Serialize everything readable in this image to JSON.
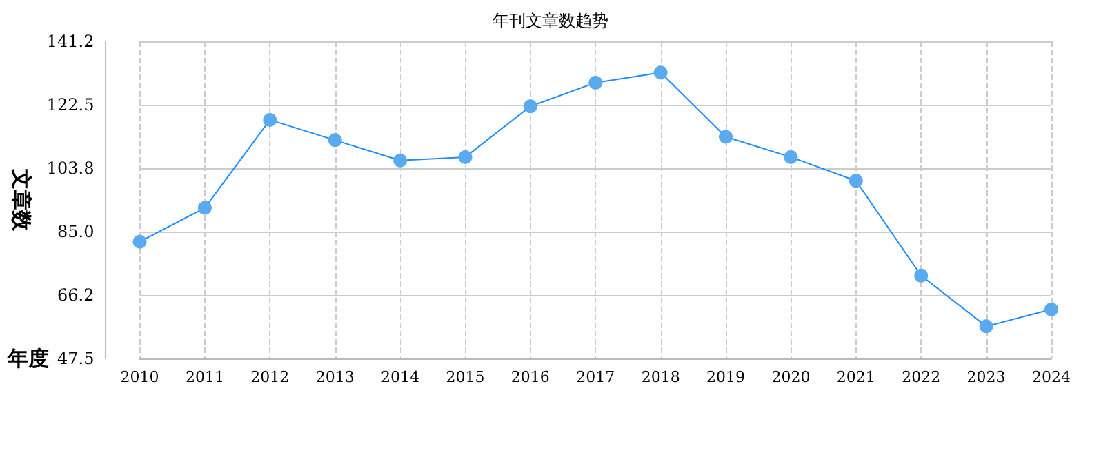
{
  "chart_data": {
    "type": "line",
    "title": "年刊文章数趋势",
    "xlabel": "年度",
    "ylabel": "文章数",
    "categories": [
      "2010",
      "2011",
      "2012",
      "2013",
      "2014",
      "2015",
      "2016",
      "2017",
      "2018",
      "2019",
      "2020",
      "2021",
      "2022",
      "2023",
      "2024"
    ],
    "series": [
      {
        "color": "#5aaaf0",
        "values": [
          82,
          92,
          118,
          112,
          106,
          107,
          122,
          129,
          132,
          113,
          107,
          100,
          72,
          57,
          62
        ]
      }
    ],
    "ylim": [
      47.5,
      141.2
    ],
    "yticks": [
      47.5,
      66.2,
      {
        "value": 85,
        "label": "85.0"
      },
      103.8,
      122.5,
      141.2
    ],
    "grid": true,
    "marker": "circle",
    "line_style": "solid"
  }
}
